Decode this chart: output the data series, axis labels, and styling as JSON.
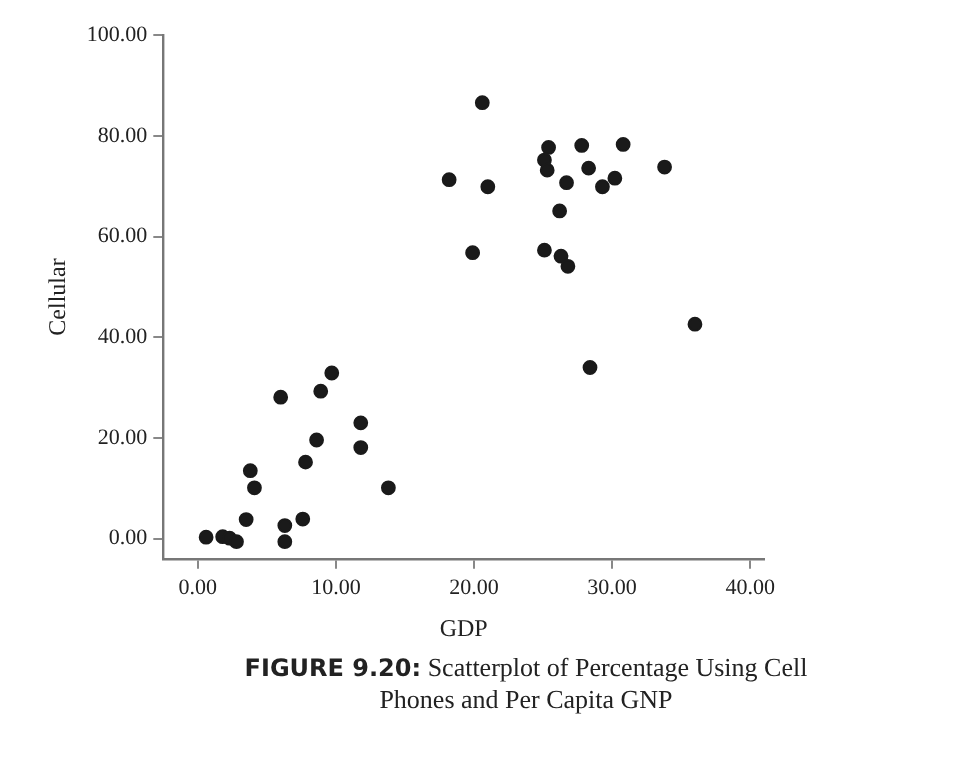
{
  "chart_data": {
    "type": "scatter",
    "xlabel": "GDP",
    "ylabel": "Cellular",
    "annotations": [
      "FIGURE 9.20: Scatterplot of Percentage Using Cell Phones and Per Capita GNP"
    ],
    "xlim": [
      -2.5,
      41
    ],
    "ylim": [
      -4,
      100
    ],
    "xticks": [
      {
        "value": 0,
        "label": "0.00"
      },
      {
        "value": 10,
        "label": "10.00"
      },
      {
        "value": 20,
        "label": "20.00"
      },
      {
        "value": 30,
        "label": "30.00"
      },
      {
        "value": 40,
        "label": "40.00"
      }
    ],
    "yticks": [
      {
        "value": 0,
        "label": "0.00"
      },
      {
        "value": 20,
        "label": "20.00"
      },
      {
        "value": 40,
        "label": "40.00"
      },
      {
        "value": 60,
        "label": "60.00"
      },
      {
        "value": 80,
        "label": "80.00"
      },
      {
        "value": 100,
        "label": "100.00"
      }
    ],
    "grid": false,
    "legend": false,
    "marker": "circle",
    "series": [
      {
        "color": "#1a1a1a",
        "x": [
          0.6,
          1.8,
          2.3,
          2.8,
          3.5,
          3.8,
          4.1,
          6.0,
          6.3,
          6.3,
          7.6,
          7.8,
          8.6,
          8.9,
          9.7,
          11.8,
          11.8,
          13.8,
          18.2,
          19.9,
          20.6,
          21.0,
          25.4,
          25.1,
          25.3,
          27.8,
          30.8,
          28.3,
          26.7,
          30.2,
          29.3,
          33.8,
          26.2,
          25.1,
          26.3,
          26.8,
          36.0,
          28.4
        ],
        "values": [
          0.3,
          0.4,
          0.1,
          -0.6,
          3.8,
          13.5,
          10.1,
          28.1,
          2.6,
          -0.6,
          3.9,
          15.2,
          19.6,
          29.3,
          32.9,
          23.0,
          18.1,
          10.1,
          71.3,
          56.8,
          86.6,
          69.9,
          77.7,
          75.2,
          73.2,
          78.1,
          78.3,
          73.6,
          70.7,
          71.6,
          69.9,
          73.8,
          65.1,
          57.3,
          56.1,
          54.1,
          42.6,
          34.0
        ]
      }
    ]
  }
}
